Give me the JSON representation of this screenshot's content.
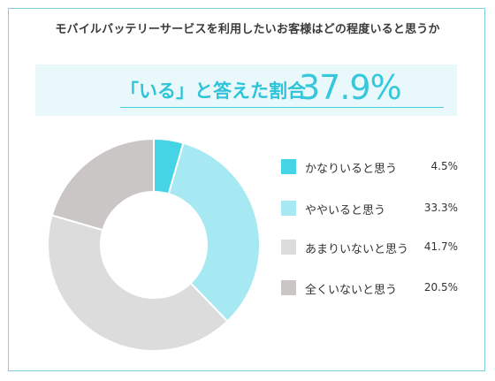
{
  "title": "モバイルバッテリーサービスを利用したいお客様はどの程度いると思うか",
  "highlight": {
    "label": "「いる」と答えた割合",
    "value": "37.9%"
  },
  "chart_data": {
    "type": "pie",
    "style": "donut",
    "categories": [
      "かなりいると思う",
      "ややいると思う",
      "あまりいないと思う",
      "全くいないと思う"
    ],
    "values": [
      4.5,
      33.3,
      41.7,
      20.5
    ],
    "value_labels": [
      "4.5%",
      "33.3%",
      "41.7%",
      "20.5%"
    ],
    "colors": [
      "#44d4e6",
      "#a6e9f2",
      "#dcdcdc",
      "#cbc6c6"
    ],
    "legend": "right"
  }
}
